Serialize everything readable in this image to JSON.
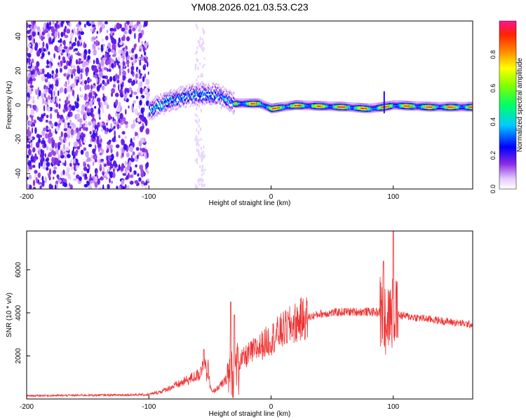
{
  "figure": {
    "title": "YM08.2026.021.03.53.C23"
  },
  "chart_data": [
    {
      "type": "heatmap",
      "name": "spectrogram",
      "xlabel": "Height of straight line (km)",
      "ylabel": "Frequency (Hz)",
      "xlim": [
        -200,
        165
      ],
      "ylim": [
        -49,
        49
      ],
      "xticks": [
        -200,
        -100,
        0,
        100
      ],
      "yticks": [
        -40,
        -20,
        0,
        20,
        40
      ],
      "colorbar": {
        "label": "Normalized spectral amplitude",
        "range": [
          0,
          1
        ],
        "ticks": [
          0.0,
          0.2,
          0.4,
          0.6,
          0.8
        ]
      },
      "features": {
        "noise_region_x": [
          -200,
          -100
        ],
        "ridge": [
          [
            -100,
            -3
          ],
          [
            -85,
            2
          ],
          [
            -65,
            6
          ],
          [
            -45,
            6
          ],
          [
            -30,
            1
          ],
          [
            -10,
            1
          ],
          [
            0,
            -2
          ],
          [
            20,
            0
          ],
          [
            60,
            -1
          ],
          [
            80,
            -2
          ],
          [
            92,
            -1
          ],
          [
            100,
            0
          ],
          [
            130,
            -1
          ],
          [
            165,
            -1
          ]
        ],
        "spike_x": 92
      },
      "colors": {
        "high": "#ff2060",
        "mid": "#33ee55",
        "low": "#2233ff",
        "floor": "#d9b8ff"
      }
    },
    {
      "type": "line",
      "name": "snr",
      "xlabel": "Height of straight line (km)",
      "ylabel": "SNR (10 * v/v)",
      "xlim": [
        -200,
        165
      ],
      "ylim": [
        0,
        7800
      ],
      "xticks": [
        -200,
        -100,
        0,
        100
      ],
      "yticks": [
        2000,
        4000,
        6000
      ],
      "series": [
        {
          "name": "SNR",
          "color": "#ee3333",
          "envelope": [
            [
              -200,
              150
            ],
            [
              -100,
              200
            ],
            [
              -90,
              350
            ],
            [
              -75,
              700
            ],
            [
              -60,
              1100
            ],
            [
              -55,
              1200
            ],
            [
              -48,
              300
            ],
            [
              -38,
              800
            ],
            [
              -30,
              1500
            ],
            [
              -20,
              2000
            ],
            [
              -5,
              2600
            ],
            [
              10,
              3200
            ],
            [
              25,
              3700
            ],
            [
              40,
              3950
            ],
            [
              60,
              4050
            ],
            [
              80,
              4050
            ],
            [
              95,
              4000
            ],
            [
              110,
              3850
            ],
            [
              130,
              3700
            ],
            [
              150,
              3550
            ],
            [
              165,
              3450
            ]
          ],
          "spikes": [
            [
              -55,
              2300
            ],
            [
              -33,
              4500
            ],
            [
              -30,
              3900
            ],
            [
              92,
              6400
            ],
            [
              100,
              7800
            ]
          ]
        }
      ]
    }
  ]
}
